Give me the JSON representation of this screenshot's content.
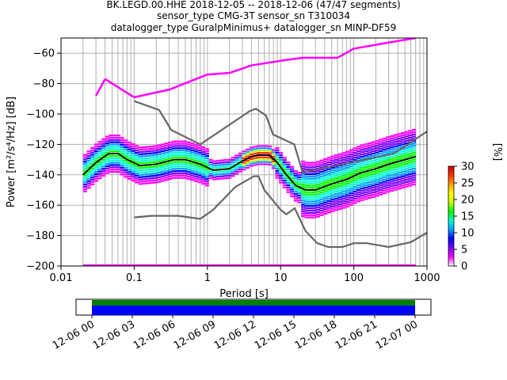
{
  "header": {
    "line1": "BK.LEGD.00.HHE   2018-12-05 -- 2018-12-06  (47/47 segments)",
    "line2": "sensor_type CMG-3T sensor_sn T310034",
    "line3": "datalogger_type GuralpMinimus+ datalogger_sn MINP-DF59"
  },
  "chart_data": {
    "type": "heatmap",
    "xlabel": "Period [s]",
    "ylabel": "Power [m²/s⁴/Hz] [dB]",
    "xscale": "log",
    "xlim": [
      0.01,
      1000
    ],
    "ylim": [
      -200,
      -50
    ],
    "xticks": [
      {
        "v": 0.01,
        "label": "0.01"
      },
      {
        "v": 0.1,
        "label": "0.1"
      },
      {
        "v": 1,
        "label": "1"
      },
      {
        "v": 10,
        "label": "10"
      },
      {
        "v": 100,
        "label": "100"
      },
      {
        "v": 1000,
        "label": "1000"
      }
    ],
    "yticks": [
      -200,
      -180,
      -160,
      -140,
      -120,
      -100,
      -80,
      -60
    ],
    "grid": true,
    "colorbar": {
      "label": "[%]",
      "min": 0,
      "max": 30,
      "ticks": [
        0,
        5,
        10,
        15,
        20,
        25,
        30
      ],
      "colors": [
        "#ffffff",
        "#ff00ff",
        "#7a00ff",
        "#0000ff",
        "#00a0ff",
        "#00ffd0",
        "#00ff00",
        "#c8ff00",
        "#ffff00",
        "#ffa000",
        "#ff3000",
        "#c80000"
      ]
    },
    "series": [
      {
        "style": "nlnm",
        "color": "#666666",
        "points": [
          [
            0.1,
            -168
          ],
          [
            0.17,
            -167
          ],
          [
            0.4,
            -167
          ],
          [
            0.8,
            -169
          ],
          [
            1.2,
            -163
          ],
          [
            2.4,
            -148
          ],
          [
            4.3,
            -141
          ],
          [
            5,
            -141
          ],
          [
            6,
            -150
          ],
          [
            10,
            -163
          ],
          [
            12,
            -166
          ],
          [
            15.6,
            -162
          ],
          [
            21.9,
            -177
          ],
          [
            31.6,
            -185
          ],
          [
            45,
            -187.5
          ],
          [
            70,
            -187.5
          ],
          [
            100,
            -185
          ],
          [
            150,
            -185
          ],
          [
            300,
            -187.5
          ],
          [
            600,
            -184.4
          ],
          [
            1000,
            -178
          ]
        ]
      },
      {
        "style": "nhnm",
        "color": "#666666",
        "points": [
          [
            0.1,
            -91.5
          ],
          [
            0.22,
            -97.4
          ],
          [
            0.32,
            -110.5
          ],
          [
            0.8,
            -120
          ],
          [
            3.8,
            -98
          ],
          [
            4.6,
            -96.5
          ],
          [
            6.3,
            -101
          ],
          [
            7.9,
            -113.5
          ],
          [
            15.4,
            -120
          ],
          [
            20,
            -138.5
          ],
          [
            354.8,
            -126
          ],
          [
            1000,
            -111.5
          ]
        ]
      },
      {
        "style": "mean",
        "color": "#000000",
        "points": [
          [
            0.02,
            -140
          ],
          [
            0.03,
            -132
          ],
          [
            0.045,
            -126
          ],
          [
            0.06,
            -126
          ],
          [
            0.08,
            -130
          ],
          [
            0.12,
            -134
          ],
          [
            0.2,
            -133
          ],
          [
            0.35,
            -130
          ],
          [
            0.5,
            -130
          ],
          [
            0.8,
            -133
          ],
          [
            1.2,
            -137
          ],
          [
            2,
            -136
          ],
          [
            3,
            -131
          ],
          [
            4,
            -128
          ],
          [
            5,
            -127
          ],
          [
            7,
            -127
          ],
          [
            9,
            -132
          ],
          [
            12,
            -140
          ],
          [
            16,
            -147
          ],
          [
            22,
            -150
          ],
          [
            30,
            -150
          ],
          [
            50,
            -146
          ],
          [
            80,
            -143
          ],
          [
            120,
            -139
          ],
          [
            200,
            -136
          ],
          [
            300,
            -133
          ],
          [
            500,
            -130
          ],
          [
            700,
            -128
          ]
        ]
      }
    ],
    "timeline": {
      "ticks": [
        "12-06 00",
        "12-06 03",
        "12-06 06",
        "12-06 09",
        "12-06 12",
        "12-06 15",
        "12-06 18",
        "12-06 21",
        "12-07 00"
      ],
      "bands": [
        {
          "color": "#008000"
        },
        {
          "color": "#0000ff"
        }
      ]
    }
  }
}
